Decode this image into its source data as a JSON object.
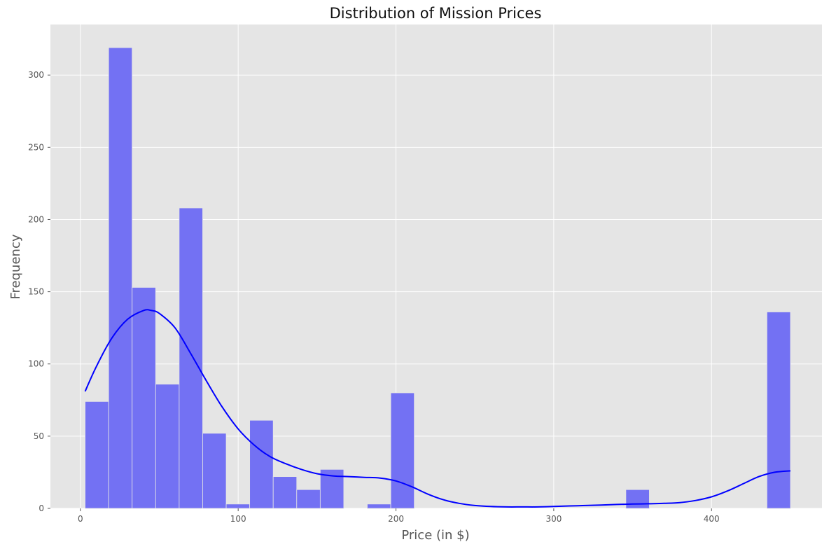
{
  "chart_data": {
    "type": "bar",
    "title": "Distribution of Mission Prices",
    "xlabel": "Price (in $)",
    "ylabel": "Frequency",
    "xlim": [
      -19,
      470
    ],
    "ylim": [
      0,
      335
    ],
    "xticks": [
      0,
      100,
      200,
      300,
      400
    ],
    "yticks": [
      0,
      50,
      100,
      150,
      200,
      250,
      300
    ],
    "grid": true,
    "bin_width": 14.9,
    "bins": [
      {
        "x0": 3.0,
        "x1": 17.9,
        "count": 74
      },
      {
        "x0": 17.9,
        "x1": 32.8,
        "count": 319
      },
      {
        "x0": 32.8,
        "x1": 47.7,
        "count": 153
      },
      {
        "x0": 47.7,
        "x1": 62.6,
        "count": 86
      },
      {
        "x0": 62.6,
        "x1": 77.5,
        "count": 208
      },
      {
        "x0": 77.5,
        "x1": 92.4,
        "count": 52
      },
      {
        "x0": 92.4,
        "x1": 107.3,
        "count": 3
      },
      {
        "x0": 107.3,
        "x1": 122.2,
        "count": 61
      },
      {
        "x0": 122.2,
        "x1": 137.1,
        "count": 22
      },
      {
        "x0": 137.1,
        "x1": 152.0,
        "count": 13
      },
      {
        "x0": 152.0,
        "x1": 166.9,
        "count": 27
      },
      {
        "x0": 181.8,
        "x1": 196.7,
        "count": 3
      },
      {
        "x0": 196.7,
        "x1": 211.6,
        "count": 80
      },
      {
        "x0": 345.7,
        "x1": 360.6,
        "count": 13
      },
      {
        "x0": 435.1,
        "x1": 450.0,
        "count": 136
      }
    ],
    "kde": {
      "x": [
        3,
        10,
        20,
        30,
        40,
        45,
        50,
        60,
        70,
        80,
        90,
        100,
        110,
        120,
        130,
        140,
        150,
        160,
        170,
        180,
        190,
        200,
        210,
        220,
        230,
        240,
        250,
        260,
        270,
        280,
        290,
        300,
        310,
        320,
        330,
        340,
        350,
        360,
        370,
        380,
        390,
        400,
        410,
        420,
        430,
        440,
        450
      ],
      "y": [
        81,
        98,
        118,
        131,
        137,
        137,
        135,
        125,
        107,
        88,
        70,
        55,
        44,
        36,
        31,
        27,
        24,
        22.5,
        22,
        21.5,
        21,
        19,
        15,
        10,
        6,
        3.5,
        2,
        1.3,
        1,
        1,
        1,
        1.3,
        1.7,
        2,
        2.3,
        2.7,
        3,
        3.2,
        3.5,
        4,
        5.5,
        8,
        12,
        17,
        22,
        25,
        26
      ]
    },
    "colors": {
      "bar": "#7371f3",
      "bar_edge": "#e5e5e5",
      "kde_line": "#0000ff",
      "plot_background": "#e5e5e5",
      "grid": "#ffffff"
    }
  }
}
